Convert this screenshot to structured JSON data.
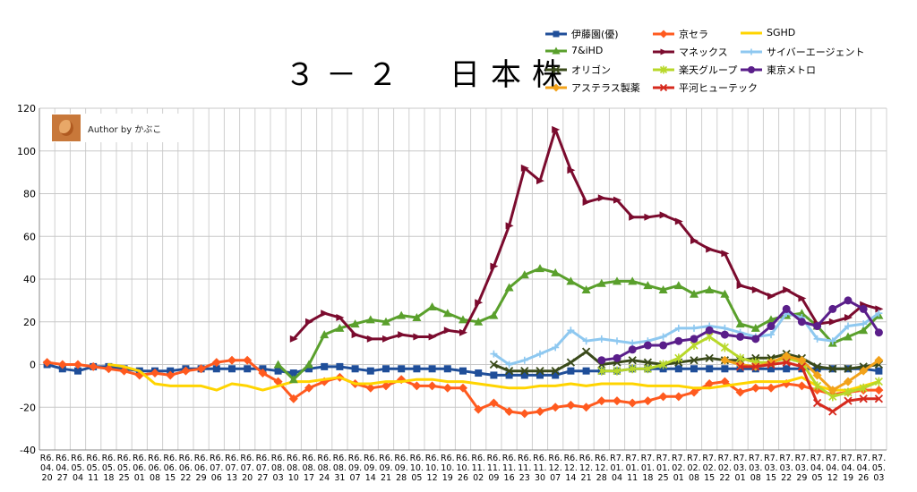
{
  "title": "３－２　日本株",
  "author": {
    "label": "Author by かぶこ"
  },
  "chart_data": {
    "type": "line",
    "ylim": [
      -40,
      120
    ],
    "yticks": [
      -40,
      -20,
      0,
      20,
      40,
      60,
      80,
      100,
      120
    ],
    "grid": true,
    "legend_position": "top-right",
    "categories": [
      [
        "R6.",
        "04.",
        "20"
      ],
      [
        "R6.",
        "04.",
        "27"
      ],
      [
        "R6.",
        "05.",
        "04"
      ],
      [
        "R6.",
        "05.",
        "11"
      ],
      [
        "R6.",
        "05.",
        "18"
      ],
      [
        "R6.",
        "05.",
        "25"
      ],
      [
        "R6.",
        "06.",
        "01"
      ],
      [
        "R6.",
        "06.",
        "08"
      ],
      [
        "R6.",
        "06.",
        "15"
      ],
      [
        "R6.",
        "06.",
        "22"
      ],
      [
        "R6.",
        "06.",
        "29"
      ],
      [
        "R6.",
        "07.",
        "06"
      ],
      [
        "R6.",
        "07.",
        "13"
      ],
      [
        "R6.",
        "07.",
        "20"
      ],
      [
        "R6.",
        "07.",
        "27"
      ],
      [
        "R6.",
        "08.",
        "03"
      ],
      [
        "R6.",
        "08.",
        "10"
      ],
      [
        "R6.",
        "08.",
        "17"
      ],
      [
        "R6.",
        "08.",
        "24"
      ],
      [
        "R6.",
        "08.",
        "31"
      ],
      [
        "R6.",
        "09.",
        "07"
      ],
      [
        "R6.",
        "09.",
        "14"
      ],
      [
        "R6.",
        "09.",
        "21"
      ],
      [
        "R6.",
        "09.",
        "28"
      ],
      [
        "R6.",
        "10.",
        "05"
      ],
      [
        "R6.",
        "10.",
        "12"
      ],
      [
        "R6.",
        "10.",
        "19"
      ],
      [
        "R6.",
        "10.",
        "26"
      ],
      [
        "R6.",
        "11.",
        "02"
      ],
      [
        "R6.",
        "11.",
        "09"
      ],
      [
        "R6.",
        "11.",
        "16"
      ],
      [
        "R6.",
        "11.",
        "23"
      ],
      [
        "R6.",
        "11.",
        "30"
      ],
      [
        "R6.",
        "12.",
        "07"
      ],
      [
        "R6.",
        "12.",
        "14"
      ],
      [
        "R6.",
        "12.",
        "21"
      ],
      [
        "R6.",
        "12.",
        "28"
      ],
      [
        "R7.",
        "01.",
        "04"
      ],
      [
        "R7.",
        "01.",
        "11"
      ],
      [
        "R7.",
        "01.",
        "18"
      ],
      [
        "R7.",
        "01.",
        "25"
      ],
      [
        "R7.",
        "02.",
        "01"
      ],
      [
        "R7.",
        "02.",
        "08"
      ],
      [
        "R7.",
        "02.",
        "15"
      ],
      [
        "R7.",
        "02.",
        "22"
      ],
      [
        "R7.",
        "03.",
        "01"
      ],
      [
        "R7.",
        "03.",
        "08"
      ],
      [
        "R7.",
        "03.",
        "15"
      ],
      [
        "R7.",
        "03.",
        "22"
      ],
      [
        "R7.",
        "03.",
        "29"
      ],
      [
        "R7.",
        "04.",
        "05"
      ],
      [
        "R7.",
        "04.",
        "12"
      ],
      [
        "R7.",
        "04.",
        "19"
      ],
      [
        "R7.",
        "04.",
        "26"
      ],
      [
        "R7.",
        "05.",
        "03"
      ]
    ],
    "series": [
      {
        "name": "伊藤園(優)",
        "color": "#1f4e99",
        "marker": "square",
        "values": [
          0,
          -2,
          -3,
          -1,
          -1,
          -2,
          -3,
          -3,
          -3,
          -2,
          -2,
          -2,
          -2,
          -2,
          -2,
          -3,
          -4,
          -2,
          -1,
          -1,
          -2,
          -3,
          -2,
          -2,
          -2,
          -2,
          -2,
          -3,
          -4,
          -5,
          -5,
          -5,
          -5,
          -5,
          -3,
          -3,
          -3,
          -3,
          -2,
          -2,
          -2,
          -2,
          -2,
          -2,
          -2,
          -2,
          -2,
          -2,
          -2,
          -2,
          -2,
          -2,
          -2,
          -2,
          -3
        ]
      },
      {
        "name": "京セラ",
        "color": "#ff5a1f",
        "marker": "diamond",
        "values": [
          1,
          0,
          0,
          -1,
          -2,
          -3,
          -5,
          -4,
          -5,
          -3,
          -2,
          1,
          2,
          2,
          -4,
          -8,
          -16,
          -11,
          -8,
          -6,
          -9,
          -11,
          -10,
          -7,
          -10,
          -10,
          -11,
          -11,
          -21,
          -18,
          -22,
          -23,
          -22,
          -20,
          -19,
          -20,
          -17,
          -17,
          -18,
          -17,
          -15,
          -15,
          -13,
          -9,
          -8,
          -13,
          -11,
          -11,
          -9,
          -10,
          -12,
          -14,
          -13,
          -12,
          -12
        ]
      },
      {
        "name": "SGHD",
        "color": "#ffd400",
        "marker": "none",
        "values": [
          null,
          null,
          null,
          null,
          0,
          -1,
          -3,
          -9,
          -10,
          -10,
          -10,
          -12,
          -9,
          -10,
          -12,
          -10,
          -8,
          -8,
          -7,
          -6,
          -9,
          -9,
          -8,
          -8,
          -7,
          -7,
          -8,
          -8,
          -9,
          -10,
          -11,
          -11,
          -10,
          -10,
          -9,
          -10,
          -9,
          -9,
          -9,
          -10,
          -10,
          -10,
          -11,
          -11,
          -10,
          -9,
          -8,
          -8,
          -8,
          -6,
          -10,
          -12,
          -12,
          -10,
          -8
        ]
      },
      {
        "name": "7&iHD",
        "color": "#5aa02c",
        "marker": "triangle",
        "values": [
          null,
          null,
          null,
          null,
          null,
          null,
          null,
          null,
          null,
          null,
          null,
          null,
          null,
          null,
          null,
          0,
          -7,
          0,
          14,
          17,
          19,
          21,
          20,
          23,
          22,
          27,
          24,
          21,
          20,
          23,
          36,
          42,
          45,
          43,
          39,
          35,
          38,
          39,
          39,
          37,
          35,
          37,
          33,
          35,
          33,
          19,
          17,
          21,
          23,
          24,
          18,
          10,
          13,
          16,
          23
        ]
      },
      {
        "name": "マネックス",
        "color": "#7b0b2e",
        "marker": "arrow",
        "values": [
          null,
          null,
          null,
          null,
          null,
          null,
          null,
          null,
          null,
          null,
          null,
          null,
          null,
          null,
          null,
          null,
          12,
          20,
          24,
          22,
          14,
          12,
          12,
          14,
          13,
          13,
          16,
          15,
          29,
          46,
          65,
          92,
          86,
          110,
          91,
          76,
          78,
          77,
          69,
          69,
          70,
          67,
          58,
          54,
          52,
          37,
          35,
          32,
          35,
          31,
          19,
          20,
          22,
          28,
          26
        ]
      },
      {
        "name": "サイバーエージェント",
        "color": "#8ec8f0",
        "marker": "plus",
        "values": [
          null,
          null,
          null,
          null,
          null,
          null,
          null,
          null,
          null,
          null,
          null,
          null,
          null,
          null,
          null,
          null,
          null,
          null,
          null,
          null,
          null,
          null,
          null,
          null,
          null,
          null,
          null,
          null,
          null,
          5,
          0,
          2,
          5,
          8,
          16,
          11,
          12,
          11,
          10,
          11,
          13,
          17,
          17,
          18,
          17,
          15,
          13,
          14,
          24,
          22,
          12,
          11,
          18,
          19,
          24
        ]
      },
      {
        "name": "オリゴン",
        "color": "#3a4a1a",
        "marker": "x",
        "values": [
          null,
          null,
          null,
          null,
          null,
          null,
          null,
          null,
          null,
          null,
          null,
          null,
          null,
          null,
          null,
          null,
          null,
          null,
          null,
          null,
          null,
          null,
          null,
          null,
          null,
          null,
          null,
          null,
          null,
          0,
          -3,
          -3,
          -3,
          -3,
          1,
          6,
          0,
          1,
          2,
          1,
          0,
          1,
          2,
          3,
          2,
          2,
          3,
          3,
          5,
          3,
          -1,
          -2,
          -2,
          -1,
          0
        ]
      },
      {
        "name": "楽天グループ",
        "color": "#b8d82a",
        "marker": "star",
        "values": [
          null,
          null,
          null,
          null,
          null,
          null,
          null,
          null,
          null,
          null,
          null,
          null,
          null,
          null,
          null,
          null,
          null,
          null,
          null,
          null,
          null,
          null,
          null,
          null,
          null,
          null,
          null,
          null,
          null,
          null,
          null,
          null,
          null,
          null,
          null,
          null,
          -3,
          -3,
          -2,
          -2,
          0,
          3,
          9,
          13,
          8,
          3,
          1,
          1,
          3,
          1,
          -10,
          -15,
          -13,
          -11,
          -8
        ]
      },
      {
        "name": "東京メトロ",
        "color": "#5a1e8a",
        "marker": "circle",
        "values": [
          null,
          null,
          null,
          null,
          null,
          null,
          null,
          null,
          null,
          null,
          null,
          null,
          null,
          null,
          null,
          null,
          null,
          null,
          null,
          null,
          null,
          null,
          null,
          null,
          null,
          null,
          null,
          null,
          null,
          null,
          null,
          null,
          null,
          null,
          null,
          null,
          2,
          3,
          7,
          9,
          9,
          11,
          12,
          16,
          14,
          13,
          12,
          18,
          26,
          20,
          18,
          26,
          30,
          26,
          15
        ]
      },
      {
        "name": "アステラス製薬",
        "color": "#f2a21a",
        "marker": "diamond",
        "values": [
          null,
          null,
          null,
          null,
          null,
          null,
          null,
          null,
          null,
          null,
          null,
          null,
          null,
          null,
          null,
          null,
          null,
          null,
          null,
          null,
          null,
          null,
          null,
          null,
          null,
          null,
          null,
          null,
          null,
          null,
          null,
          null,
          null,
          null,
          null,
          null,
          null,
          null,
          null,
          null,
          null,
          null,
          null,
          null,
          2,
          0,
          -1,
          1,
          4,
          2,
          -5,
          -12,
          -8,
          -3,
          2
        ]
      },
      {
        "name": "平河ヒューテック",
        "color": "#d62a1e",
        "marker": "x",
        "values": [
          null,
          null,
          null,
          null,
          null,
          null,
          null,
          null,
          null,
          null,
          null,
          null,
          null,
          null,
          null,
          null,
          null,
          null,
          null,
          null,
          null,
          null,
          null,
          null,
          null,
          null,
          null,
          null,
          null,
          null,
          null,
          null,
          null,
          null,
          null,
          null,
          null,
          null,
          null,
          null,
          null,
          null,
          null,
          null,
          null,
          -1,
          -1,
          0,
          1,
          -1,
          -18,
          -22,
          -17,
          -16,
          -16
        ]
      }
    ]
  }
}
